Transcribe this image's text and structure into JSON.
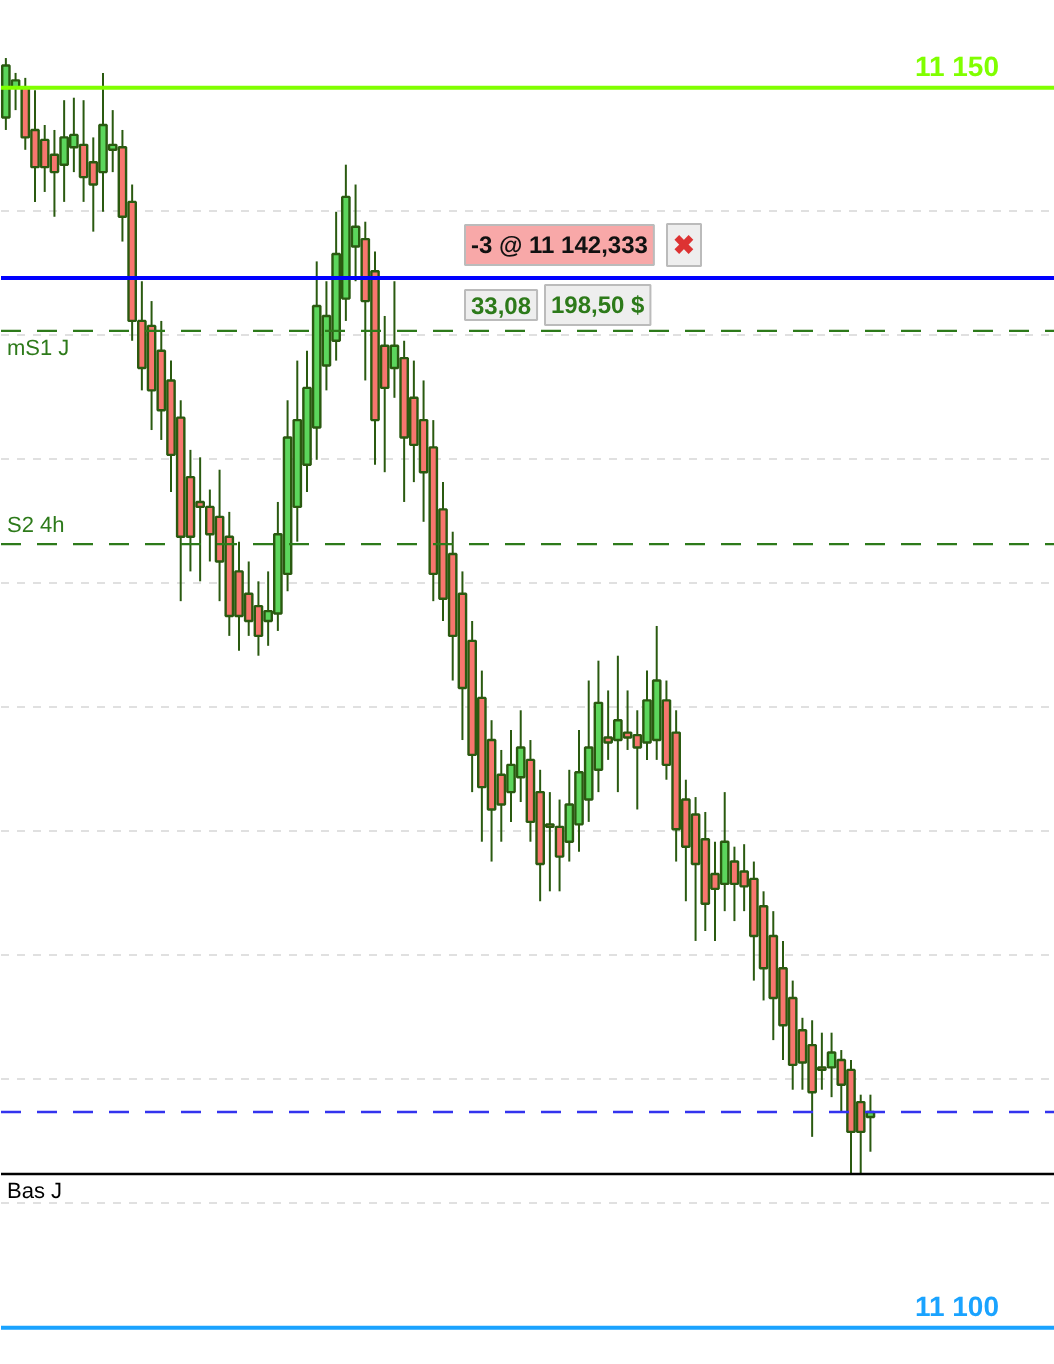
{
  "chart_data": {
    "type": "candlestick",
    "categories": [
      null,
      null,
      null,
      null,
      null,
      null,
      null,
      null,
      null,
      null,
      null,
      null,
      null,
      null,
      null,
      null,
      null,
      null,
      null,
      null,
      null,
      null,
      null,
      null,
      null,
      null,
      null,
      null,
      null,
      null,
      null,
      null,
      null,
      null,
      null,
      null,
      null,
      null,
      null,
      null,
      null,
      null,
      null,
      null,
      null,
      null,
      null,
      null,
      null,
      null,
      null,
      null,
      null,
      null,
      null,
      null,
      null,
      null,
      null,
      null,
      null,
      null,
      null,
      null,
      null,
      null,
      null,
      null,
      null,
      null,
      null,
      null,
      null,
      null,
      null,
      null,
      null,
      null,
      null,
      null,
      null,
      null,
      null,
      null,
      null,
      null,
      null,
      null,
      null,
      null
    ],
    "ohlc": [
      [
        11148.8,
        11151.2,
        11148.3,
        11150.9
      ],
      [
        11150.0,
        11150.6,
        11149.1,
        11150.3
      ],
      [
        11150.0,
        11150.4,
        11147.5,
        11148.0
      ],
      [
        11148.3,
        11149.9,
        11145.4,
        11146.8
      ],
      [
        11147.9,
        11148.5,
        11145.8,
        11146.8
      ],
      [
        11147.3,
        11148.3,
        11144.8,
        11146.6
      ],
      [
        11146.9,
        11149.5,
        11145.4,
        11148.0
      ],
      [
        11147.6,
        11149.6,
        11146.6,
        11148.1
      ],
      [
        11147.7,
        11149.5,
        11145.4,
        11146.4
      ],
      [
        11147.0,
        11148.0,
        11144.2,
        11146.1
      ],
      [
        11146.6,
        11150.6,
        11145.0,
        11148.5
      ],
      [
        11147.5,
        11149.1,
        11146.6,
        11147.7
      ],
      [
        11147.6,
        11148.3,
        11143.8,
        11144.8
      ],
      [
        11145.4,
        11146.1,
        11139.8,
        11140.6
      ],
      [
        11140.6,
        11142.2,
        11137.8,
        11138.7
      ],
      [
        11140.4,
        11141.4,
        11136.2,
        11137.8
      ],
      [
        11139.4,
        11140.6,
        11135.8,
        11137.0
      ],
      [
        11138.2,
        11139.0,
        11133.7,
        11135.2
      ],
      [
        11136.7,
        11137.4,
        11129.3,
        11131.9
      ],
      [
        11134.3,
        11135.4,
        11130.5,
        11131.9
      ],
      [
        11133.3,
        11135.1,
        11130.1,
        11133.1
      ],
      [
        11133.1,
        11133.8,
        11130.9,
        11132.0
      ],
      [
        11132.7,
        11134.6,
        11129.3,
        11130.9
      ],
      [
        11131.9,
        11132.9,
        11127.9,
        11128.7
      ],
      [
        11130.5,
        11131.7,
        11127.3,
        11128.7
      ],
      [
        11129.6,
        11130.9,
        11127.9,
        11128.5
      ],
      [
        11129.1,
        11130.1,
        11127.1,
        11127.9
      ],
      [
        11128.5,
        11130.5,
        11127.5,
        11128.9
      ],
      [
        11128.8,
        11133.3,
        11128.1,
        11132.0
      ],
      [
        11130.4,
        11137.4,
        11129.7,
        11135.9
      ],
      [
        11133.1,
        11139.0,
        11131.7,
        11136.6
      ],
      [
        11134.8,
        11139.4,
        11133.7,
        11137.9
      ],
      [
        11136.3,
        11143.0,
        11135.0,
        11141.2
      ],
      [
        11138.8,
        11142.2,
        11137.8,
        11140.8
      ],
      [
        11139.8,
        11145.0,
        11139.0,
        11143.3
      ],
      [
        11141.5,
        11146.9,
        11140.6,
        11145.6
      ],
      [
        11143.6,
        11146.1,
        11142.2,
        11144.4
      ],
      [
        11143.9,
        11144.6,
        11138.2,
        11141.4
      ],
      [
        11142.6,
        11143.4,
        11134.8,
        11136.6
      ],
      [
        11139.6,
        11140.8,
        11134.5,
        11137.9
      ],
      [
        11138.7,
        11142.2,
        11137.5,
        11139.6
      ],
      [
        11139.1,
        11139.8,
        11133.3,
        11135.9
      ],
      [
        11137.5,
        11139.0,
        11134.1,
        11135.6
      ],
      [
        11136.6,
        11138.2,
        11132.5,
        11134.5
      ],
      [
        11135.5,
        11136.6,
        11129.3,
        11130.4
      ],
      [
        11133.0,
        11134.1,
        11128.5,
        11129.4
      ],
      [
        11131.2,
        11132.1,
        11126.1,
        11127.9
      ],
      [
        11129.6,
        11130.5,
        11123.7,
        11125.8
      ],
      [
        11127.7,
        11128.5,
        11121.6,
        11123.1
      ],
      [
        11125.4,
        11126.5,
        11119.6,
        11121.8
      ],
      [
        11123.7,
        11124.5,
        11118.8,
        11120.9
      ],
      [
        11122.3,
        11123.3,
        11119.6,
        11121.1
      ],
      [
        11121.6,
        11124.1,
        11120.4,
        11122.7
      ],
      [
        11122.2,
        11124.9,
        11121.2,
        11123.4
      ],
      [
        11122.9,
        11123.7,
        11119.6,
        11120.4
      ],
      [
        11121.6,
        11122.5,
        11117.2,
        11118.7
      ],
      [
        11120.3,
        11121.6,
        11117.6,
        11120.2
      ],
      [
        11120.2,
        11121.3,
        11117.6,
        11119.0
      ],
      [
        11119.6,
        11122.5,
        11118.8,
        11121.1
      ],
      [
        11120.3,
        11124.1,
        11119.2,
        11122.4
      ],
      [
        11121.3,
        11126.1,
        11120.4,
        11123.4
      ],
      [
        11122.5,
        11126.9,
        11121.6,
        11125.2
      ],
      [
        11123.8,
        11125.7,
        11122.9,
        11123.6
      ],
      [
        11123.7,
        11127.1,
        11121.6,
        11124.5
      ],
      [
        11124.0,
        11125.7,
        11123.3,
        11123.8
      ],
      [
        11123.9,
        11124.9,
        11120.9,
        11123.4
      ],
      [
        11123.6,
        11126.5,
        11122.9,
        11125.3
      ],
      [
        11123.7,
        11128.3,
        11122.9,
        11126.1
      ],
      [
        11125.3,
        11126.1,
        11122.1,
        11122.7
      ],
      [
        11124.0,
        11124.9,
        11118.8,
        11120.1
      ],
      [
        11121.3,
        11122.1,
        11117.2,
        11119.4
      ],
      [
        11120.7,
        11121.4,
        11115.6,
        11118.7
      ],
      [
        11119.7,
        11120.8,
        11116.0,
        11117.1
      ],
      [
        11118.3,
        11119.6,
        11115.6,
        11117.7
      ],
      [
        11117.9,
        11121.6,
        11116.8,
        11119.6
      ],
      [
        11118.8,
        11119.4,
        11116.4,
        11117.9
      ],
      [
        11118.4,
        11119.5,
        11116.8,
        11117.8
      ],
      [
        11118.1,
        11118.8,
        11114.0,
        11115.8
      ],
      [
        11117.0,
        11117.6,
        11113.2,
        11114.5
      ],
      [
        11115.8,
        11116.8,
        11111.6,
        11113.3
      ],
      [
        11114.5,
        11115.6,
        11110.8,
        11112.2
      ],
      [
        11113.3,
        11114.0,
        11109.6,
        11110.6
      ],
      [
        11112.0,
        11112.5,
        11109.6,
        11110.7
      ],
      [
        11111.4,
        11112.4,
        11107.7,
        11109.5
      ],
      [
        11110.5,
        11111.9,
        11109.6,
        11110.4
      ],
      [
        11110.5,
        11111.9,
        11109.3,
        11111.1
      ],
      [
        11110.8,
        11111.2,
        11108.7,
        11109.8
      ],
      [
        11110.4,
        11110.8,
        11106.2,
        11107.9
      ],
      [
        11109.1,
        11109.4,
        11106.2,
        11107.9
      ],
      [
        11108.5,
        11109.4,
        11107.1,
        11108.7
      ]
    ],
    "colors": [
      "#5cd65c",
      "#5cd65c",
      "#f7766e",
      "#f7766e",
      "#f7766e",
      "#f7766e",
      "#5cd65c",
      "#5cd65c",
      "#f7766e",
      "#f7766e",
      "#5cd65c",
      "#5cd65c",
      "#f7766e",
      "#f7766e",
      "#f7766e",
      "#f7766e",
      "#f7766e",
      "#f7766e",
      "#f7766e",
      "#f7766e",
      "#f7766e",
      "#f7766e",
      "#f7766e",
      "#f7766e",
      "#f7766e",
      "#f7766e",
      "#f7766e",
      "#5cd65c",
      "#5cd65c",
      "#5cd65c",
      "#5cd65c",
      "#5cd65c",
      "#5cd65c",
      "#5cd65c",
      "#5cd65c",
      "#5cd65c",
      "#5cd65c",
      "#f7766e",
      "#f7766e",
      "#f7766e",
      "#5cd65c",
      "#f7766e",
      "#f7766e",
      "#f7766e",
      "#f7766e",
      "#f7766e",
      "#f7766e",
      "#f7766e",
      "#f7766e",
      "#f7766e",
      "#f7766e",
      "#f7766e",
      "#5cd65c",
      "#5cd65c",
      "#f7766e",
      "#f7766e",
      "#f7766e",
      "#f7766e",
      "#5cd65c",
      "#5cd65c",
      "#5cd65c",
      "#5cd65c",
      "#f7766e",
      "#5cd65c",
      "#f7766e",
      "#f7766e",
      "#5cd65c",
      "#5cd65c",
      "#f7766e",
      "#f7766e",
      "#f7766e",
      "#f7766e",
      "#f7766e",
      "#f7766e",
      "#5cd65c",
      "#f7766e",
      "#f7766e",
      "#f7766e",
      "#f7766e",
      "#f7766e",
      "#f7766e",
      "#f7766e",
      "#f7766e",
      "#f7766e",
      "#f7766e",
      "#5cd65c",
      "#f7766e",
      "#f7766e",
      "#f7766e",
      "#5cd65c"
    ],
    "ylim": [
      11098.5,
      11153.5
    ],
    "yticks": [
      {
        "value": 11100,
        "label": null
      },
      {
        "value": 11105,
        "label": null
      },
      {
        "value": 11110,
        "label": null
      },
      {
        "value": 11115,
        "label": null
      },
      {
        "value": 11120,
        "label": null
      },
      {
        "value": 11125,
        "label": null
      },
      {
        "value": 11130,
        "label": null
      },
      {
        "value": 11135,
        "label": null
      },
      {
        "value": 11140,
        "label": null
      },
      {
        "value": 11145,
        "label": null
      },
      {
        "value": 11150,
        "label": null
      }
    ],
    "grid": "y",
    "tick_labels": false,
    "ref_lines": [
      {
        "axis": "y",
        "value": 11150,
        "label": "11 150",
        "color": "#80ff00",
        "line_style": "solid"
      },
      {
        "axis": "y",
        "value": 11142.333,
        "label": null,
        "color": "#0000ff",
        "line_style": "solid"
      },
      {
        "axis": "y",
        "value": 11140.2,
        "label": "mS1 J",
        "color": "#2d7a1a",
        "line_style": "dashed"
      },
      {
        "axis": "y",
        "value": 11131.6,
        "label": "S2 4h",
        "color": "#2d7a1a",
        "line_style": "dashed"
      },
      {
        "axis": "y",
        "value": 11108.7,
        "label": null,
        "color": "#3333ee",
        "line_style": "dashed"
      },
      {
        "axis": "y",
        "value": 11106.2,
        "label": "Bas J",
        "color": "#000000",
        "line_style": "solid"
      },
      {
        "axis": "y",
        "value": 11100,
        "label": "11 100",
        "color": "#1aa3ff",
        "line_style": "solid"
      }
    ],
    "annotations": [
      "-3 @ 11 142,333",
      "33,08",
      "198,50 $",
      "✖"
    ]
  }
}
